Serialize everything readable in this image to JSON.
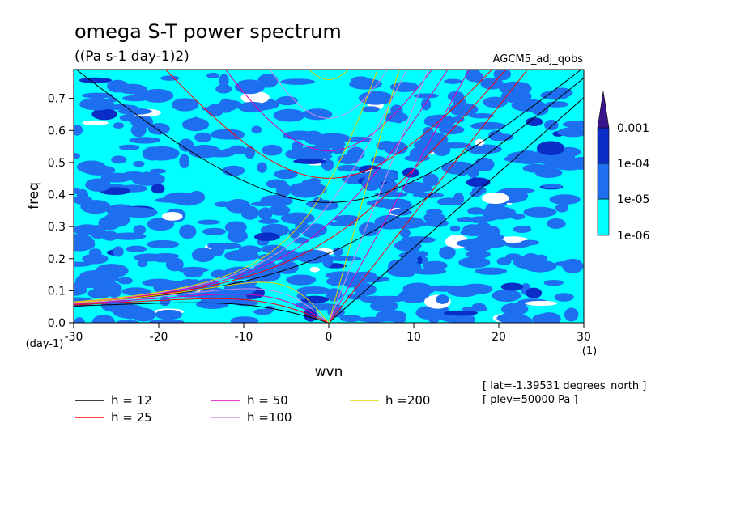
{
  "chart_data": {
    "type": "heatmap",
    "title": "omega S-T power spectrum",
    "subtitle": "((Pa s-1 day-1)2)",
    "dataset_label": "AGCM5_adj_qobs",
    "xlabel": "wvn",
    "ylabel": "freq",
    "x_unit_label": "(1)",
    "y_unit_label": "(day-1)",
    "xlim": [
      -30,
      30
    ],
    "ylim": [
      0,
      0.79
    ],
    "xticks": [
      -30,
      -20,
      -10,
      0,
      10,
      20,
      30
    ],
    "yticks": [
      0.0,
      0.1,
      0.2,
      0.3,
      0.4,
      0.5,
      0.6,
      0.7
    ],
    "xtick_labels": [
      "-30",
      "-20",
      "-10",
      "0",
      "10",
      "20",
      "30"
    ],
    "ytick_labels": [
      "0.0",
      "0.1",
      "0.2",
      "0.3",
      "0.4",
      "0.5",
      "0.6",
      "0.7"
    ],
    "colorbar": {
      "labels": [
        "1e-06",
        "1e-05",
        "1e-04",
        "0.001"
      ],
      "levels": [
        1e-06,
        1e-05,
        0.0001,
        0.001
      ],
      "colors": [
        "#00ffff",
        "#1e6ff0",
        "#0a2dc8",
        "#3a148c"
      ]
    },
    "info_lines": [
      "[ lat=-1.39531 degrees_north ]",
      "[ plev=50000 Pa ]"
    ],
    "dispersion_curves": [
      {
        "name": "h = 12",
        "color": "#000000",
        "h": 12
      },
      {
        "name": "h = 25",
        "color": "#ff0000",
        "h": 25
      },
      {
        "name": "h = 50",
        "color": "#e000b4",
        "h": 50
      },
      {
        "name": "h =100",
        "color": "#d28cdc",
        "h": 100
      },
      {
        "name": "h =200",
        "color": "#e6d200",
        "h": 200
      }
    ]
  }
}
